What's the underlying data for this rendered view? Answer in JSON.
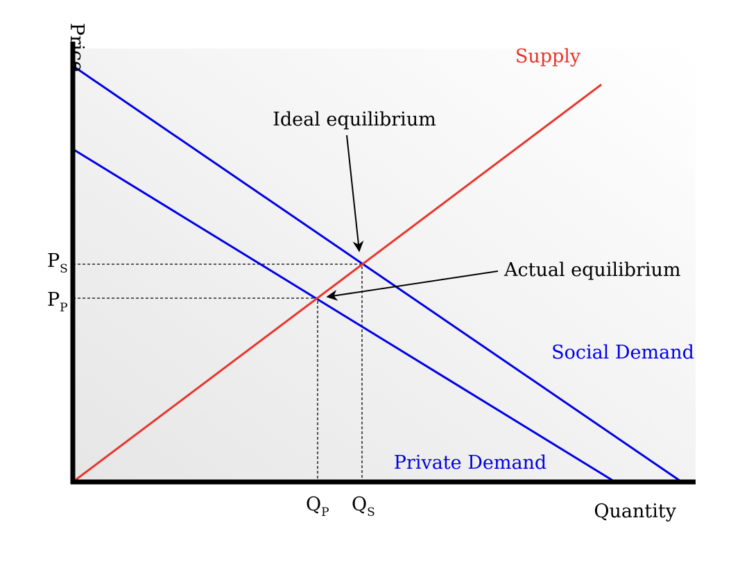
{
  "axes": {
    "y_label": "Price",
    "x_label": "Quantity"
  },
  "curves": [
    {
      "label": "Supply"
    },
    {
      "label": "Social Demand"
    },
    {
      "label": "Private Demand"
    }
  ],
  "annotations": [
    {
      "label": "Ideal equilibrium"
    },
    {
      "label": "Actual equilibrium"
    }
  ],
  "price_levels": [
    {
      "symbol": "P",
      "subscript": "S"
    },
    {
      "symbol": "P",
      "subscript": "P"
    }
  ],
  "quantity_levels": [
    {
      "symbol": "Q",
      "subscript": "P"
    },
    {
      "symbol": "Q",
      "subscript": "S"
    }
  ]
}
